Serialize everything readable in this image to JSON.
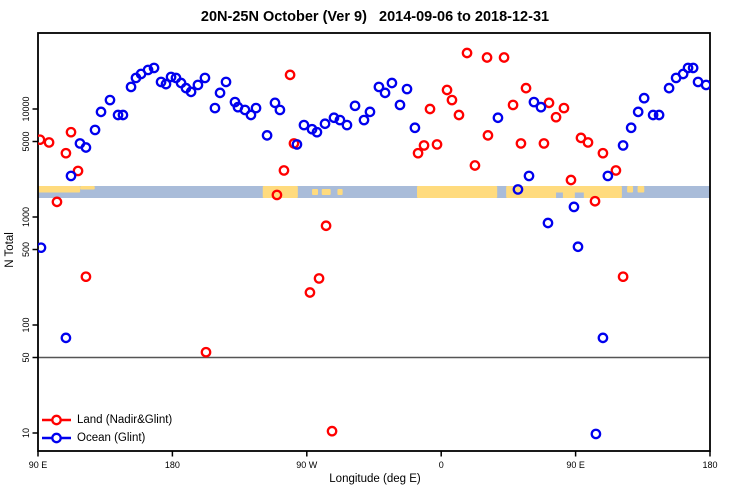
{
  "chart_data": {
    "type": "scatter",
    "title": "20N-25N October (Ver 9)   2014-09-06 to 2018-12-31",
    "xlabel": "Longitude (deg E)",
    "ylabel": "N Total",
    "x_axis": {
      "range": [
        90,
        540
      ],
      "ticks": [
        {
          "pos": 90,
          "label": "90 E"
        },
        {
          "pos": 180,
          "label": "180"
        },
        {
          "pos": 270,
          "label": "90 W"
        },
        {
          "pos": 360,
          "label": "0"
        },
        {
          "pos": 450,
          "label": "90 E"
        },
        {
          "pos": 540,
          "label": "180"
        }
      ]
    },
    "y_axis": {
      "scale": "log",
      "range": [
        6,
        49000
      ],
      "ticks": [
        {
          "value": 10,
          "label": "10"
        },
        {
          "value": 50,
          "label": "50"
        },
        {
          "value": 100,
          "label": "100"
        },
        {
          "value": 500,
          "label": "500"
        },
        {
          "value": 1000,
          "label": "1000"
        },
        {
          "value": 5000,
          "label": "5000"
        },
        {
          "value": 10000,
          "label": "10000"
        }
      ]
    },
    "reference_line": {
      "value": 50,
      "color": "#555555"
    },
    "legend_position": "bottom-left",
    "grid": false,
    "point_style": "open-circle",
    "series": [
      {
        "name": "Land (Nadir&Glint)",
        "color": "#FF0000",
        "points": [
          [
            91.3,
            5200
          ],
          [
            97.4,
            4900
          ],
          [
            102.7,
            1380
          ],
          [
            108.7,
            3900
          ],
          [
            112.1,
            6100
          ],
          [
            116.8,
            2670
          ],
          [
            122.1,
            280
          ],
          [
            202.5,
            56
          ],
          [
            250.0,
            1600
          ],
          [
            254.7,
            2700
          ],
          [
            258.8,
            20700
          ],
          [
            261.4,
            4800
          ],
          [
            272.1,
            200
          ],
          [
            278.2,
            270
          ],
          [
            282.9,
            830
          ],
          [
            286.9,
            10.4
          ],
          [
            344.5,
            3900
          ],
          [
            348.5,
            4600
          ],
          [
            352.5,
            10000
          ],
          [
            357.2,
            4700
          ],
          [
            363.9,
            15000
          ],
          [
            367.2,
            12100
          ],
          [
            371.9,
            8800
          ],
          [
            377.3,
            33000
          ],
          [
            382.6,
            3000
          ],
          [
            390.7,
            30000
          ],
          [
            391.3,
            5700
          ],
          [
            402.1,
            30000
          ],
          [
            408.1,
            10900
          ],
          [
            413.4,
            4800
          ],
          [
            416.8,
            15600
          ],
          [
            428.8,
            4800
          ],
          [
            432.2,
            11400
          ],
          [
            436.9,
            8400
          ],
          [
            442.2,
            10200
          ],
          [
            446.9,
            2200
          ],
          [
            453.6,
            5400
          ],
          [
            458.3,
            4900
          ],
          [
            463.0,
            1400
          ],
          [
            468.3,
            3900
          ],
          [
            477.0,
            2700
          ],
          [
            481.8,
            280
          ]
        ]
      },
      {
        "name": "Ocean (Glint)",
        "color": "#0000EE",
        "points": [
          [
            92.0,
            520
          ],
          [
            108.7,
            76
          ],
          [
            112.1,
            2400
          ],
          [
            118.1,
            4800
          ],
          [
            122.1,
            4400
          ],
          [
            128.2,
            6400
          ],
          [
            132.2,
            9400
          ],
          [
            138.2,
            12100
          ],
          [
            143.6,
            8800
          ],
          [
            146.9,
            8800
          ],
          [
            152.3,
            16000
          ],
          [
            155.6,
            19400
          ],
          [
            159.0,
            21100
          ],
          [
            163.7,
            23000
          ],
          [
            167.7,
            24000
          ],
          [
            172.4,
            17800
          ],
          [
            175.7,
            17000
          ],
          [
            179.1,
            19800
          ],
          [
            182.4,
            19400
          ],
          [
            185.8,
            17400
          ],
          [
            189.1,
            15600
          ],
          [
            192.5,
            14400
          ],
          [
            197.1,
            16700
          ],
          [
            201.8,
            19400
          ],
          [
            208.5,
            10200
          ],
          [
            211.9,
            14100
          ],
          [
            215.9,
            17800
          ],
          [
            221.9,
            11600
          ],
          [
            223.9,
            10400
          ],
          [
            228.6,
            9800
          ],
          [
            232.6,
            8800
          ],
          [
            236.0,
            10200
          ],
          [
            243.4,
            5700
          ],
          [
            248.7,
            11400
          ],
          [
            252.0,
            9800
          ],
          [
            263.4,
            4700
          ],
          [
            268.1,
            7100
          ],
          [
            273.5,
            6500
          ],
          [
            276.8,
            6100
          ],
          [
            282.2,
            7300
          ],
          [
            288.2,
            8300
          ],
          [
            292.2,
            7900
          ],
          [
            296.9,
            7100
          ],
          [
            302.3,
            10700
          ],
          [
            308.3,
            7900
          ],
          [
            312.3,
            9400
          ],
          [
            318.3,
            16000
          ],
          [
            322.4,
            14100
          ],
          [
            327.0,
            17400
          ],
          [
            332.4,
            10900
          ],
          [
            337.1,
            15300
          ],
          [
            342.4,
            6700
          ],
          [
            398.0,
            8300
          ],
          [
            411.4,
            1800
          ],
          [
            418.8,
            2400
          ],
          [
            422.1,
            11600
          ],
          [
            426.8,
            10400
          ],
          [
            431.5,
            880
          ],
          [
            448.9,
            1240
          ],
          [
            451.6,
            530
          ],
          [
            463.6,
            9.8
          ],
          [
            468.3,
            76
          ],
          [
            471.6,
            2400
          ],
          [
            481.8,
            4600
          ],
          [
            487.2,
            6700
          ],
          [
            491.9,
            9400
          ],
          [
            495.9,
            12600
          ],
          [
            501.9,
            8800
          ],
          [
            505.9,
            8800
          ],
          [
            512.6,
            15600
          ],
          [
            517.3,
            19400
          ],
          [
            522.0,
            21100
          ],
          [
            525.3,
            24000
          ],
          [
            528.7,
            24000
          ],
          [
            532.0,
            17800
          ],
          [
            537.4,
            16700
          ]
        ]
      }
    ],
    "map_band": {
      "description": "20N-25N latitude land/ocean strip",
      "ocean_color": "#A9BCD9",
      "land_color": "#FFDB7E",
      "land_segments": [
        {
          "from": 90,
          "to": 118.2,
          "part": "top"
        },
        {
          "from": 118.2,
          "to": 128,
          "part": "sliver"
        },
        {
          "from": 240.5,
          "to": 264,
          "part": "full"
        },
        {
          "from": 273.5,
          "to": 277.5,
          "part": "mid"
        },
        {
          "from": 280,
          "to": 286,
          "part": "mid"
        },
        {
          "from": 290.5,
          "to": 294,
          "part": "mid"
        },
        {
          "from": 343.8,
          "to": 397.5,
          "part": "full"
        },
        {
          "from": 403.5,
          "to": 481,
          "part": "full"
        },
        {
          "from": 484.5,
          "to": 488.5,
          "part": "top"
        },
        {
          "from": 491.5,
          "to": 496,
          "part": "top"
        }
      ],
      "ocean_notches": [
        {
          "from": 436.9,
          "to": 441.5
        },
        {
          "from": 449.5,
          "to": 455.5
        }
      ]
    }
  }
}
